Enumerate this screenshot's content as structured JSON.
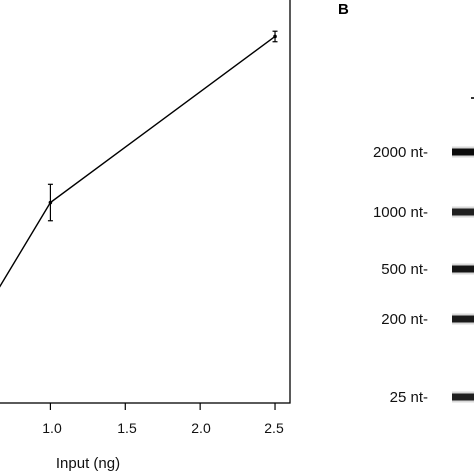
{
  "panel_b_letter": "B",
  "chart_data": {
    "type": "line",
    "xlabel": "Input (ng)",
    "ylabel": "",
    "xlim": [
      0.65,
      2.6
    ],
    "ylim": [
      0,
      1
    ],
    "x_ticks": [
      "1.0",
      "1.5",
      "2.0",
      "2.5"
    ],
    "series": [
      {
        "name": "",
        "points": [
          {
            "x": 0.65,
            "y": 0.28,
            "err": 0
          },
          {
            "x": 1.0,
            "y": 0.495,
            "err": 0.045
          },
          {
            "x": 2.5,
            "y": 0.905,
            "err": 0.013
          }
        ]
      }
    ]
  },
  "ladder": {
    "lanes": [
      {
        "bands": [
          {
            "label": "2000 nt-",
            "intensity": 0.95
          },
          {
            "label": "1000 nt-",
            "intensity": 0.85
          },
          {
            "label": "500 nt-",
            "intensity": 0.9
          },
          {
            "label": "200 nt-",
            "intensity": 0.88
          },
          {
            "label": "25 nt-",
            "intensity": 0.85
          }
        ]
      }
    ]
  }
}
